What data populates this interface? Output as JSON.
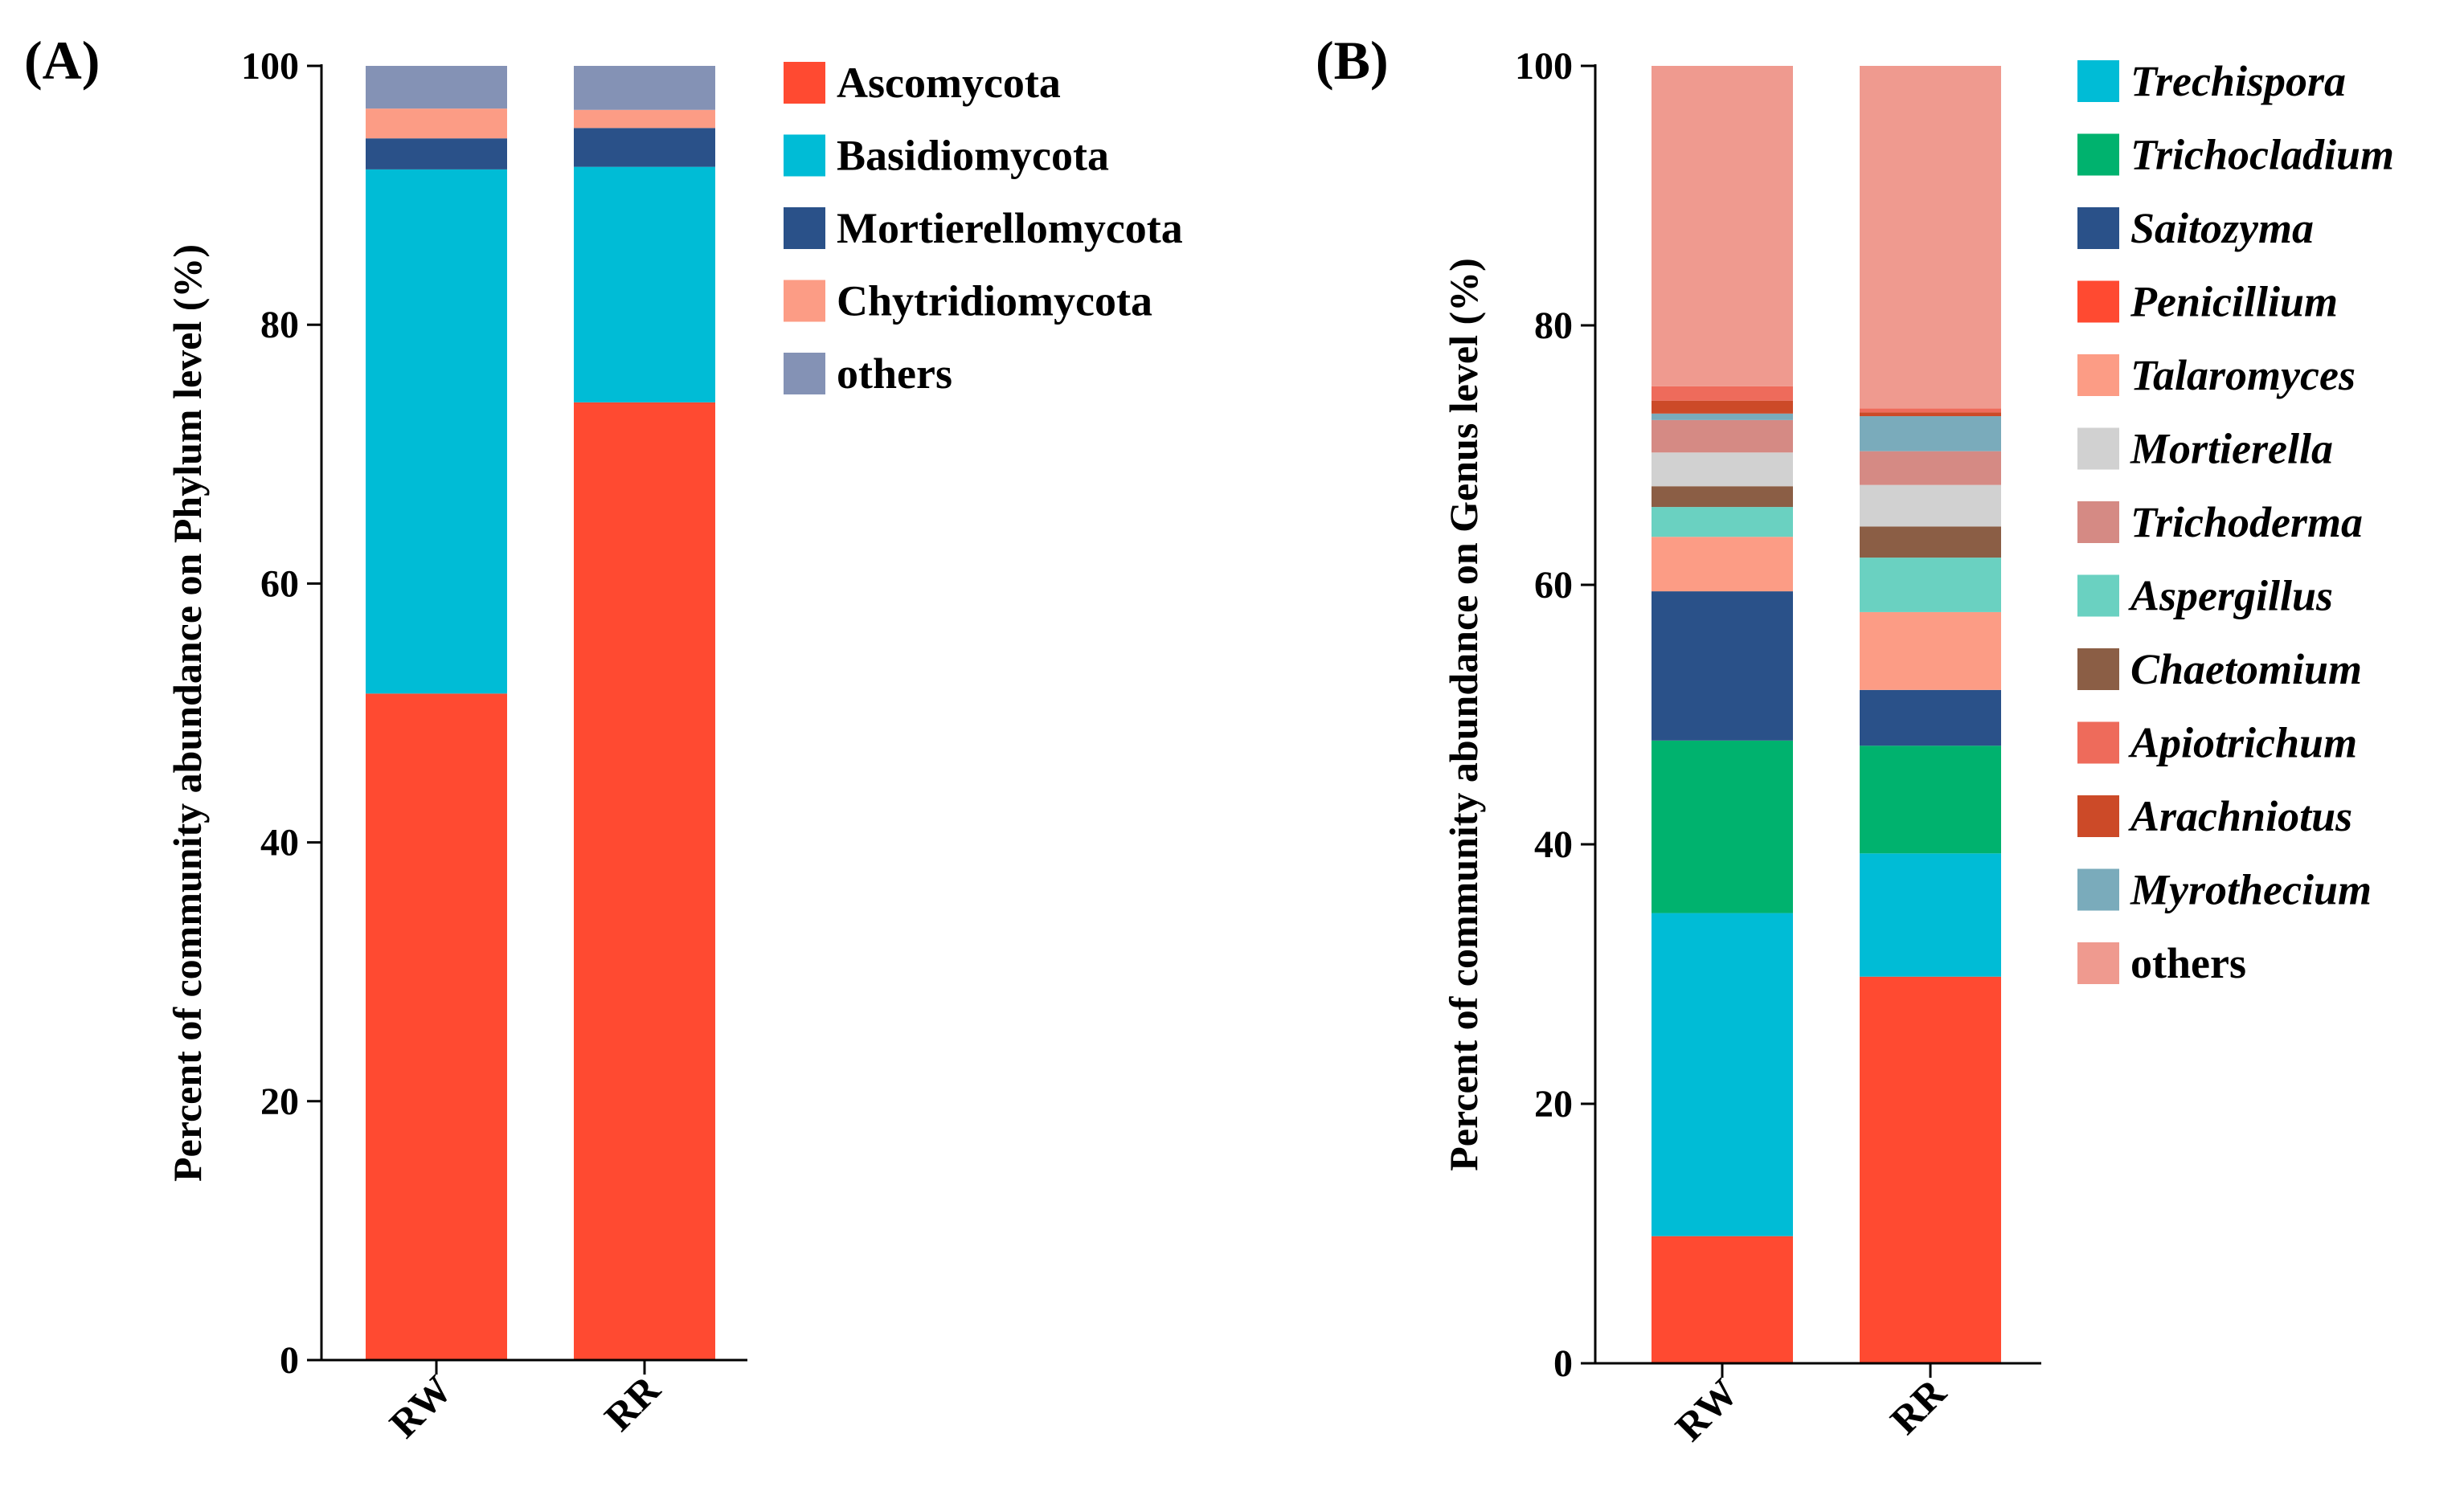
{
  "chart_data": [
    {
      "type": "stacked-bar",
      "panel_label": "(A)",
      "ylabel": "Percent of community abundance on Phylum level (%)",
      "ylim": [
        0,
        100
      ],
      "yticks": [
        "0",
        "20",
        "40",
        "60",
        "80",
        "100"
      ],
      "categories": [
        "RW",
        "RR"
      ],
      "legend_italic": false,
      "series": [
        {
          "name": "Ascomycota",
          "color": "#FF4A31",
          "values": [
            51.5,
            74.0
          ]
        },
        {
          "name": "Basidiomycota",
          "color": "#00BCD6",
          "values": [
            40.5,
            18.2
          ]
        },
        {
          "name": "Mortierellomycota",
          "color": "#2A5189",
          "values": [
            2.4,
            3.0
          ]
        },
        {
          "name": "Chytridiomycota",
          "color": "#FC9C85",
          "values": [
            2.3,
            1.4
          ]
        },
        {
          "name": "others",
          "color": "#8492B5",
          "values": [
            3.3,
            3.4
          ]
        }
      ]
    },
    {
      "type": "stacked-bar",
      "panel_label": "(B)",
      "ylabel": "Percent of community abundance on Genus level (%)",
      "ylim": [
        0,
        100
      ],
      "yticks": [
        "0",
        "20",
        "40",
        "60",
        "80",
        "100"
      ],
      "categories": [
        "RW",
        "RR"
      ],
      "legend_italic": true,
      "series": [
        {
          "name": "Penicillium",
          "color": "#FF4A31",
          "values": [
            9.8,
            29.8
          ]
        },
        {
          "name": "Trechispora",
          "color": "#00BCD6",
          "values": [
            24.9,
            9.5
          ]
        },
        {
          "name": "Trichocladium",
          "color": "#00B26E",
          "values": [
            13.3,
            8.3
          ]
        },
        {
          "name": "Saitozyma",
          "color": "#2A5189",
          "values": [
            11.5,
            4.3
          ]
        },
        {
          "name": "Talaromyces",
          "color": "#FC9C85",
          "values": [
            4.2,
            6.0
          ]
        },
        {
          "name": "Aspergillus",
          "color": "#6AD1C1",
          "values": [
            2.3,
            4.2
          ]
        },
        {
          "name": "Chaetomium",
          "color": "#8B5E45",
          "values": [
            1.6,
            2.4
          ]
        },
        {
          "name": "Mortierella",
          "color": "#D1D1D1",
          "values": [
            2.6,
            3.2
          ]
        },
        {
          "name": "Trichoderma",
          "color": "#D58A84",
          "values": [
            2.5,
            2.6
          ]
        },
        {
          "name": "Myrothecium",
          "color": "#7AABBB",
          "values": [
            0.5,
            2.7
          ]
        },
        {
          "name": "Arachniotus",
          "color": "#CC4A28",
          "values": [
            1.0,
            0.3
          ]
        },
        {
          "name": "Apiotrichum",
          "color": "#EE6B5B",
          "values": [
            1.1,
            0.3
          ]
        },
        {
          "name": "others",
          "color": "#EF9A8F",
          "values": [
            24.7,
            26.4
          ]
        }
      ],
      "legend_order": [
        "Trechispora",
        "Trichocladium",
        "Saitozyma",
        "Penicillium",
        "Talaromyces",
        "Mortierella",
        "Trichoderma",
        "Aspergillus",
        "Chaetomium",
        "Apiotrichum",
        "Arachniotus",
        "Myrothecium",
        "others"
      ]
    }
  ]
}
